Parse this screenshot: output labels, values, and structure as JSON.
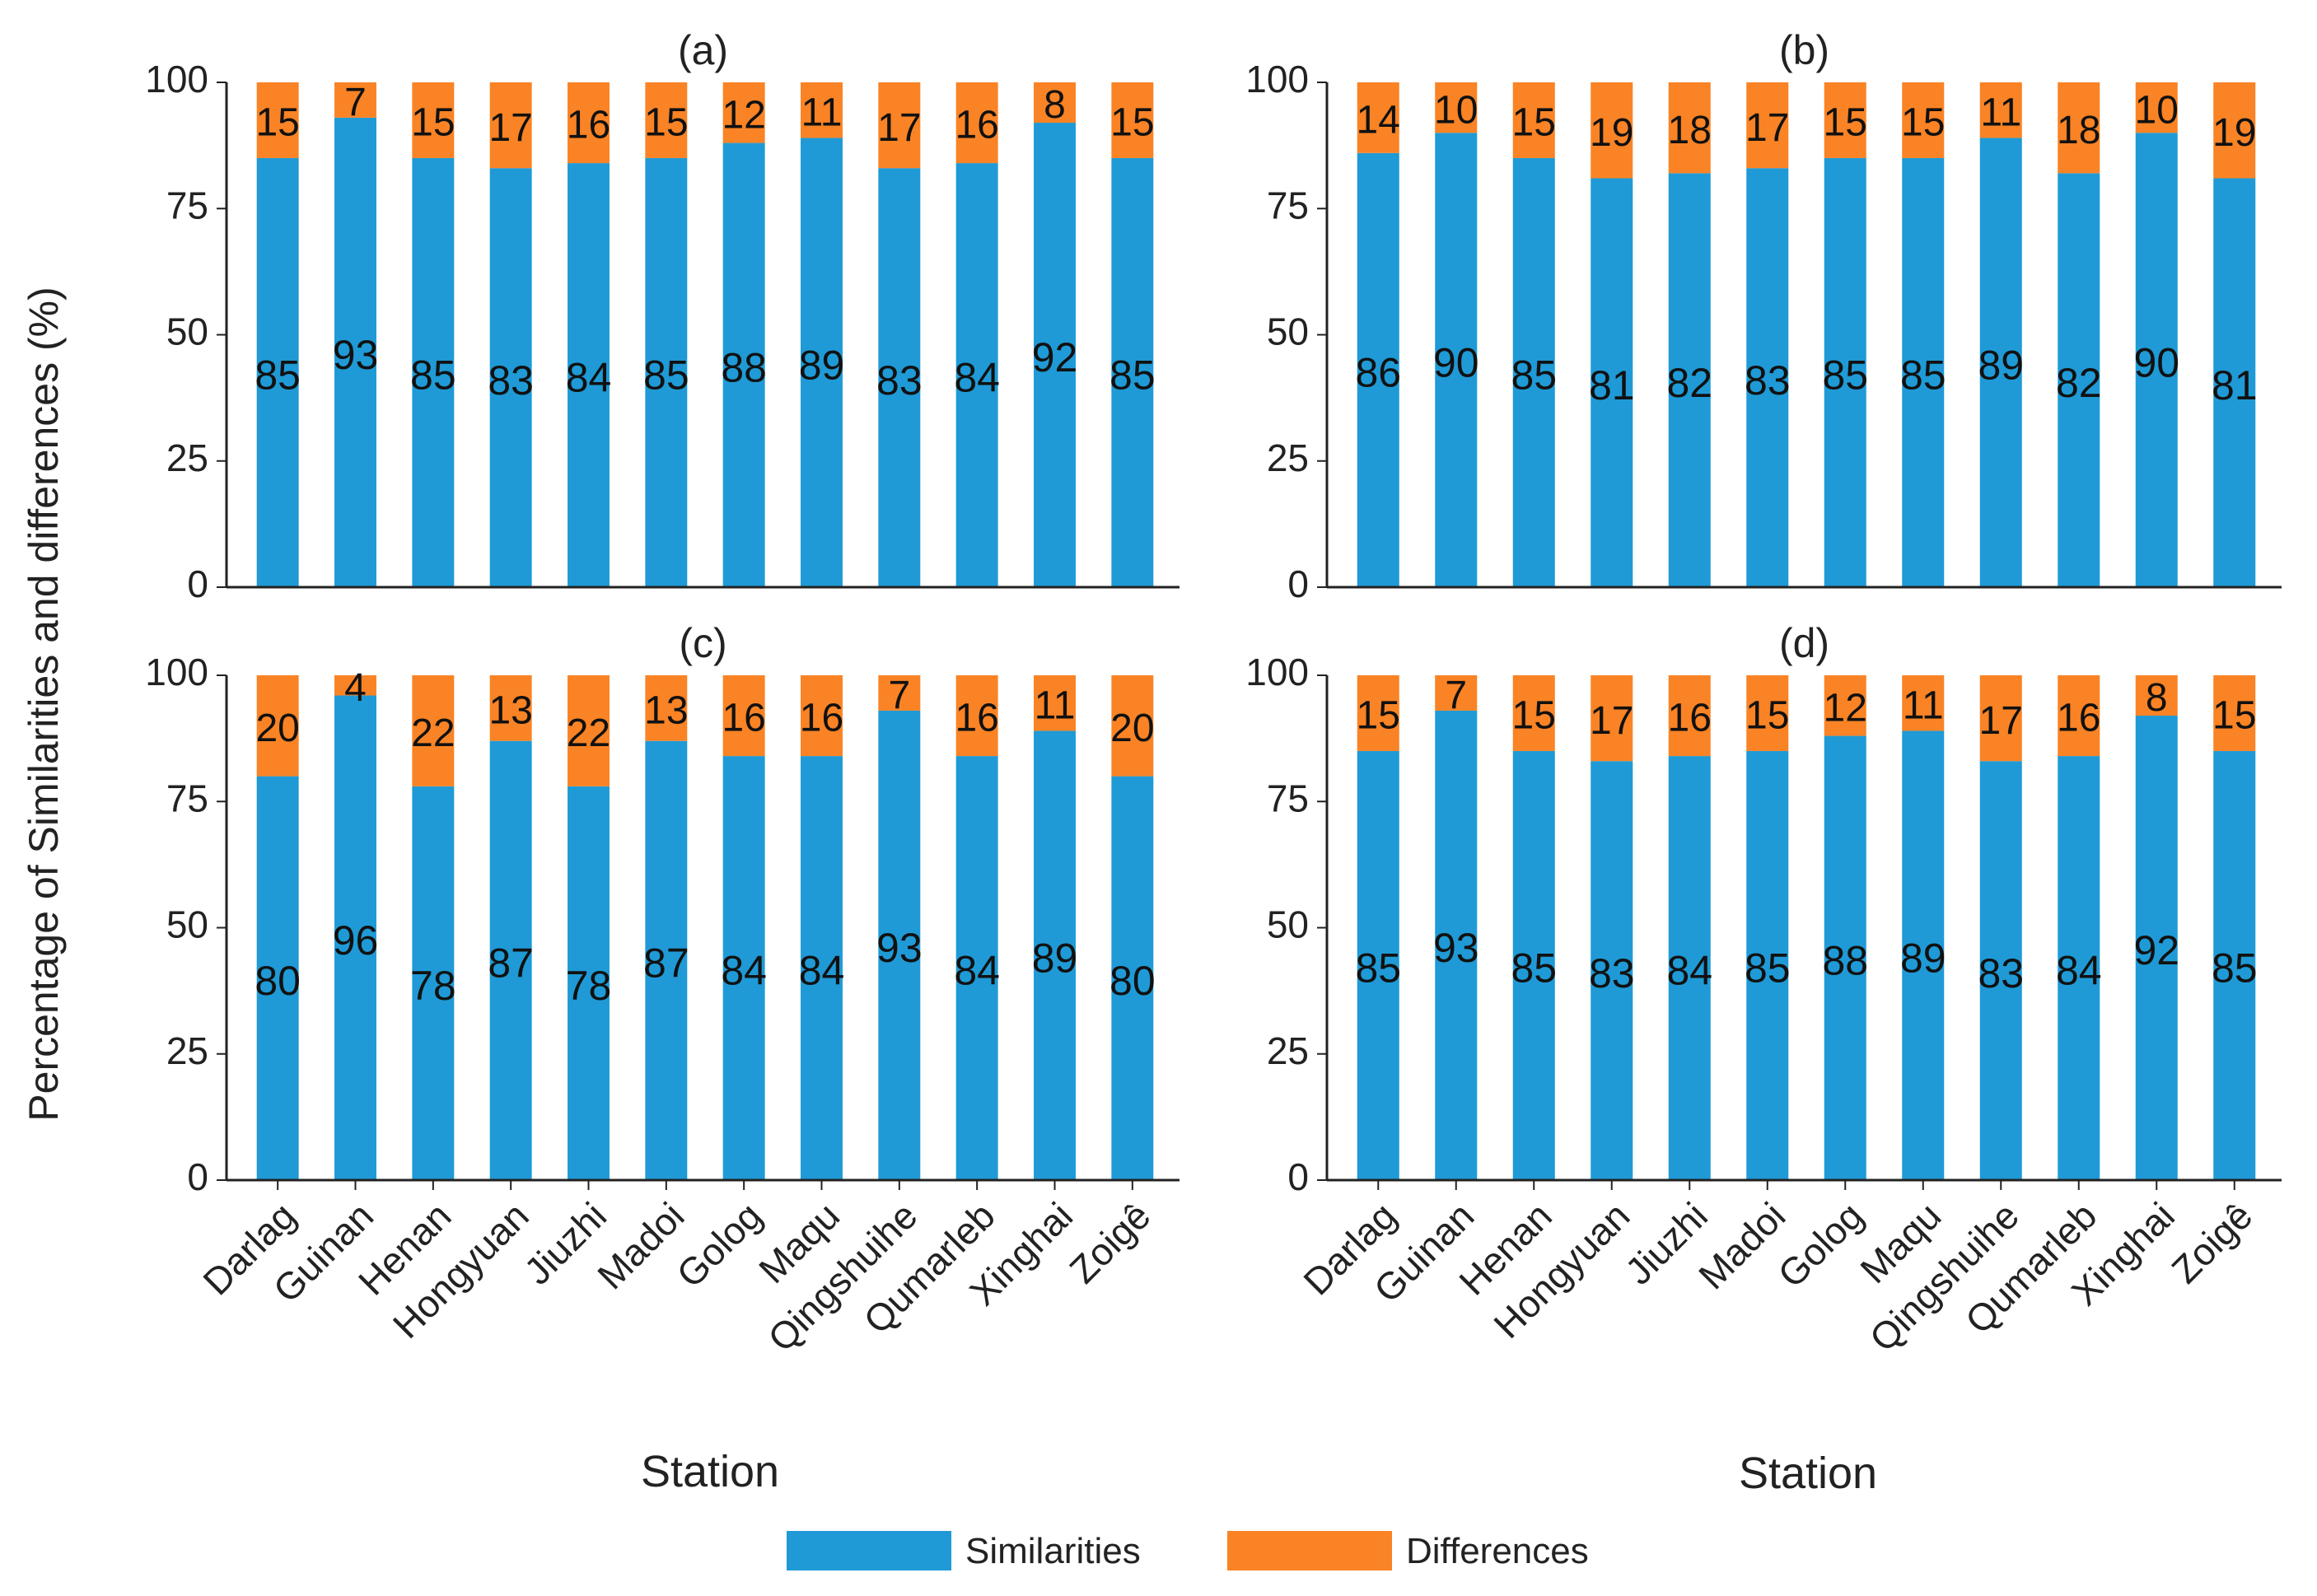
{
  "figure": {
    "ylabel": "Percentage of Similarities and differences (%)",
    "xlabel": "Station",
    "legend": [
      {
        "label": "Similarities",
        "color": "#1f9ad6"
      },
      {
        "label": "Differences",
        "color": "#f98325"
      }
    ]
  },
  "chart_data": [
    {
      "type": "bar",
      "stacked": true,
      "title": "(a)",
      "categories": [
        "Darlag",
        "Guinan",
        "Henan",
        "Hongyuan",
        "Jiuzhi",
        "Madoi",
        "Golog",
        "Maqu",
        "Qingshuihe",
        "Qumarleb",
        "Xinghai",
        "Zoigê"
      ],
      "series": [
        {
          "name": "Similarities",
          "values": [
            85,
            93,
            85,
            83,
            84,
            85,
            88,
            89,
            83,
            84,
            92,
            85
          ]
        },
        {
          "name": "Differences",
          "values": [
            15,
            7,
            15,
            17,
            16,
            15,
            12,
            11,
            17,
            16,
            8,
            15
          ]
        }
      ],
      "yticks": [
        0,
        25,
        50,
        75,
        100
      ],
      "ylim": [
        0,
        100
      ]
    },
    {
      "type": "bar",
      "stacked": true,
      "title": "(b)",
      "categories": [
        "Darlag",
        "Guinan",
        "Henan",
        "Hongyuan",
        "Jiuzhi",
        "Madoi",
        "Golog",
        "Maqu",
        "Qingshuihe",
        "Qumarleb",
        "Xinghai",
        "Zoigê"
      ],
      "series": [
        {
          "name": "Similarities",
          "values": [
            86,
            90,
            85,
            81,
            82,
            83,
            85,
            85,
            89,
            82,
            90,
            81
          ]
        },
        {
          "name": "Differences",
          "values": [
            14,
            10,
            15,
            19,
            18,
            17,
            15,
            15,
            11,
            18,
            10,
            19
          ]
        }
      ],
      "yticks": [
        0,
        25,
        50,
        75,
        100
      ],
      "ylim": [
        0,
        100
      ]
    },
    {
      "type": "bar",
      "stacked": true,
      "title": "(c)",
      "categories": [
        "Darlag",
        "Guinan",
        "Henan",
        "Hongyuan",
        "Jiuzhi",
        "Madoi",
        "Golog",
        "Maqu",
        "Qingshuihe",
        "Qumarleb",
        "Xinghai",
        "Zoigê"
      ],
      "series": [
        {
          "name": "Similarities",
          "values": [
            80,
            96,
            78,
            87,
            78,
            87,
            84,
            84,
            93,
            84,
            89,
            80
          ]
        },
        {
          "name": "Differences",
          "values": [
            20,
            4,
            22,
            13,
            22,
            13,
            16,
            16,
            7,
            16,
            11,
            20
          ]
        }
      ],
      "yticks": [
        0,
        25,
        50,
        75,
        100
      ],
      "ylim": [
        0,
        100
      ]
    },
    {
      "type": "bar",
      "stacked": true,
      "title": "(d)",
      "categories": [
        "Darlag",
        "Guinan",
        "Henan",
        "Hongyuan",
        "Jiuzhi",
        "Madoi",
        "Golog",
        "Maqu",
        "Qingshuihe",
        "Qumarleb",
        "Xinghai",
        "Zoigê"
      ],
      "series": [
        {
          "name": "Similarities",
          "values": [
            85,
            93,
            85,
            83,
            84,
            85,
            88,
            89,
            83,
            84,
            92,
            85
          ]
        },
        {
          "name": "Differences",
          "values": [
            15,
            7,
            15,
            17,
            16,
            15,
            12,
            11,
            17,
            16,
            8,
            15
          ]
        }
      ],
      "yticks": [
        0,
        25,
        50,
        75,
        100
      ],
      "ylim": [
        0,
        100
      ]
    }
  ]
}
